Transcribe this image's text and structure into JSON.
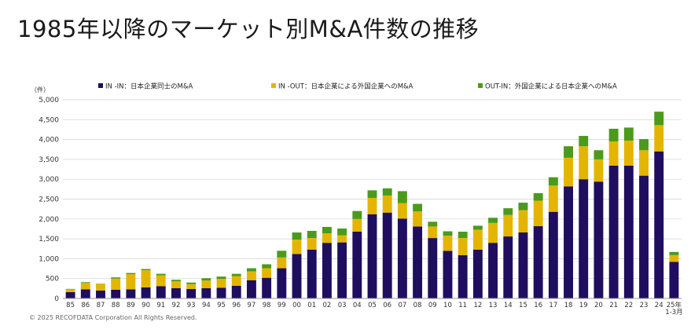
{
  "title": "1985年以降のマーケット別M&A件数の推移",
  "copyright": "© 2025 RECOFDATA Corporation All Rights Reserved.",
  "chart_data": {
    "type": "bar",
    "stacked": true,
    "unit_label": "（件）",
    "ylim": [
      0,
      5000
    ],
    "yticks": [
      "0",
      "500",
      "1,000",
      "1,500",
      "2,000",
      "2,500",
      "3,000",
      "3,500",
      "4,000",
      "4,500",
      "5,000"
    ],
    "categories": [
      "85",
      "86",
      "87",
      "88",
      "89",
      "90",
      "91",
      "92",
      "93",
      "94",
      "95",
      "96",
      "97",
      "98",
      "99",
      "00",
      "01",
      "02",
      "03",
      "04",
      "05",
      "06",
      "07",
      "08",
      "09",
      "10",
      "11",
      "12",
      "13",
      "14",
      "15",
      "16",
      "17",
      "18",
      "19",
      "20",
      "21",
      "22",
      "23",
      "24",
      "25年1-3月"
    ],
    "category_labels": [
      [
        "85"
      ],
      [
        "86"
      ],
      [
        "87"
      ],
      [
        "88"
      ],
      [
        "89"
      ],
      [
        "90"
      ],
      [
        "91"
      ],
      [
        "92"
      ],
      [
        "93"
      ],
      [
        "94"
      ],
      [
        "95"
      ],
      [
        "96"
      ],
      [
        "97"
      ],
      [
        "98"
      ],
      [
        "99"
      ],
      [
        "00"
      ],
      [
        "01"
      ],
      [
        "02"
      ],
      [
        "03"
      ],
      [
        "04"
      ],
      [
        "05"
      ],
      [
        "06"
      ],
      [
        "07"
      ],
      [
        "08"
      ],
      [
        "09"
      ],
      [
        "10"
      ],
      [
        "11"
      ],
      [
        "12"
      ],
      [
        "13"
      ],
      [
        "14"
      ],
      [
        "15"
      ],
      [
        "16"
      ],
      [
        "17"
      ],
      [
        "18"
      ],
      [
        "19"
      ],
      [
        "20"
      ],
      [
        "21"
      ],
      [
        "22"
      ],
      [
        "23"
      ],
      [
        "24"
      ],
      [
        "25年",
        "1-3月"
      ]
    ],
    "legend_position": "top",
    "series": [
      {
        "name": "IN -IN：日本企業同士のM&A",
        "color": "#1f0e5f",
        "values": [
          160,
          230,
          200,
          220,
          230,
          280,
          310,
          260,
          240,
          260,
          270,
          320,
          460,
          520,
          760,
          1120,
          1230,
          1400,
          1410,
          1680,
          2120,
          2160,
          2010,
          1810,
          1520,
          1200,
          1090,
          1230,
          1400,
          1560,
          1660,
          1820,
          2180,
          2820,
          3000,
          2940,
          3340,
          3340,
          3090,
          3700,
          920
        ]
      },
      {
        "name": "IN -OUT：日本企業による外国企業へのM&A",
        "color": "#e4b500",
        "values": [
          70,
          160,
          160,
          280,
          380,
          430,
          270,
          170,
          120,
          190,
          220,
          240,
          220,
          240,
          270,
          360,
          290,
          240,
          180,
          320,
          410,
          430,
          390,
          380,
          290,
          380,
          430,
          500,
          500,
          540,
          560,
          640,
          660,
          720,
          830,
          560,
          610,
          630,
          640,
          660,
          170
        ]
      },
      {
        "name": "OUT-IN：外国企業による日本企業へのM&A",
        "color": "#4b9a1c",
        "values": [
          10,
          20,
          10,
          30,
          30,
          30,
          40,
          40,
          40,
          60,
          60,
          60,
          80,
          100,
          170,
          180,
          180,
          160,
          170,
          200,
          190,
          180,
          300,
          190,
          120,
          110,
          160,
          100,
          130,
          170,
          190,
          190,
          210,
          290,
          260,
          230,
          320,
          330,
          280,
          340,
          80
        ]
      }
    ]
  }
}
